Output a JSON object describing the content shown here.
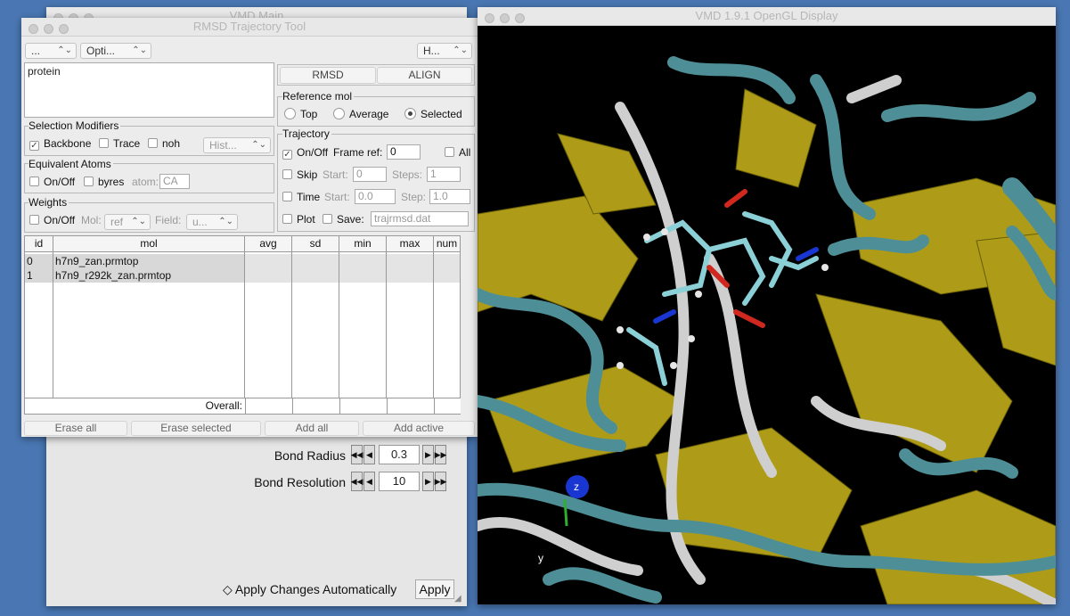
{
  "vmd_main": {
    "title": "VMD Main",
    "bond_radius_label": "Bond Radius",
    "bond_radius_value": "0.3",
    "bond_resolution_label": "Bond Resolution",
    "bond_resolution_value": "10",
    "apply_auto_label": "Apply Changes Automatically",
    "apply_button": "Apply"
  },
  "rmsd_tool": {
    "title": "RMSD Trajectory Tool",
    "menu": {
      "file": "...",
      "options": "Opti...",
      "help": "H..."
    },
    "selection_text": "protein",
    "buttons": {
      "rmsd": "RMSD",
      "align": "ALIGN"
    },
    "selection_modifiers": {
      "title": "Selection Modifiers",
      "backbone": "Backbone",
      "trace": "Trace",
      "noh": "noh",
      "history": "Hist..."
    },
    "equivalent_atoms": {
      "title": "Equivalent Atoms",
      "onoff": "On/Off",
      "byres": "byres",
      "atom_label": "atom:",
      "atom_value": "CA"
    },
    "weights": {
      "title": "Weights",
      "onoff": "On/Off",
      "mol_label": "Mol:",
      "mol_value": "ref",
      "field_label": "Field:",
      "field_value": "u..."
    },
    "reference_mol": {
      "title": "Reference mol",
      "top": "Top",
      "average": "Average",
      "selected": "Selected"
    },
    "trajectory": {
      "title": "Trajectory",
      "onoff": "On/Off",
      "frame_ref_label": "Frame ref:",
      "frame_ref_value": "0",
      "all": "All",
      "skip": "Skip",
      "start_label": "Start:",
      "skip_start_value": "0",
      "steps_label": "Steps:",
      "steps_value": "1",
      "time": "Time",
      "time_start_value": "0.0",
      "step_label": "Step:",
      "step_value": "1.0",
      "plot": "Plot",
      "save": "Save:",
      "save_file": "trajrmsd.dat"
    },
    "table": {
      "headers": [
        "id",
        "mol",
        "avg",
        "sd",
        "min",
        "max",
        "num"
      ],
      "rows": [
        {
          "id": "0",
          "mol": "h7n9_zan.prmtop"
        },
        {
          "id": "1",
          "mol": "h7n9_r292k_zan.prmtop"
        }
      ],
      "overall_label": "Overall:"
    },
    "bottom_buttons": {
      "erase_all": "Erase all",
      "erase_selected": "Erase selected",
      "add_all": "Add all",
      "add_active": "Add active"
    }
  },
  "opengl": {
    "title": "VMD 1.9.1 OpenGL Display",
    "axis_z": "z",
    "axis_y": "y",
    "colors": {
      "teal": "#4e8f97",
      "yellow": "#b8a51a",
      "white": "#d0d0d0",
      "red": "#d0281e",
      "blue": "#1a36d2"
    }
  }
}
